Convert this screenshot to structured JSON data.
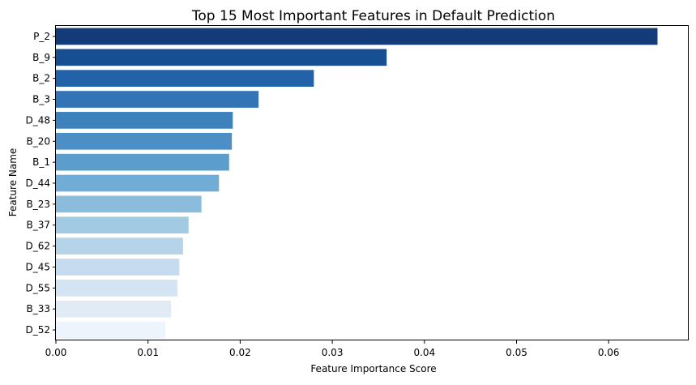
{
  "chart_data": {
    "type": "bar",
    "orientation": "horizontal",
    "title": "Top 15 Most Important Features in Default Prediction",
    "xlabel": "Feature Importance Score",
    "ylabel": "Feature Name",
    "categories": [
      "P_2",
      "B_9",
      "B_2",
      "B_3",
      "D_48",
      "B_20",
      "B_1",
      "D_44",
      "B_23",
      "B_37",
      "D_62",
      "D_45",
      "D_55",
      "B_33",
      "D_52"
    ],
    "values": [
      0.0653,
      0.0359,
      0.028,
      0.022,
      0.0192,
      0.0191,
      0.0188,
      0.0177,
      0.0158,
      0.0144,
      0.0138,
      0.0134,
      0.0132,
      0.0125,
      0.0119
    ],
    "colors": [
      "#123b77",
      "#164f92",
      "#2262a8",
      "#3374b6",
      "#3e82bd",
      "#4b8fc6",
      "#5b9ecd",
      "#71acd6",
      "#8bbcdc",
      "#a2cae3",
      "#b5d4e9",
      "#c6dbef",
      "#d5e4f3",
      "#e1ebf6",
      "#edf4fb"
    ],
    "xlim": [
      0,
      0.0686
    ],
    "xticks": [
      0.0,
      0.01,
      0.02,
      0.03,
      0.04,
      0.05,
      0.06
    ],
    "xtick_labels": [
      "0.00",
      "0.01",
      "0.02",
      "0.03",
      "0.04",
      "0.05",
      "0.06"
    ],
    "grid": false,
    "legend": "none"
  }
}
